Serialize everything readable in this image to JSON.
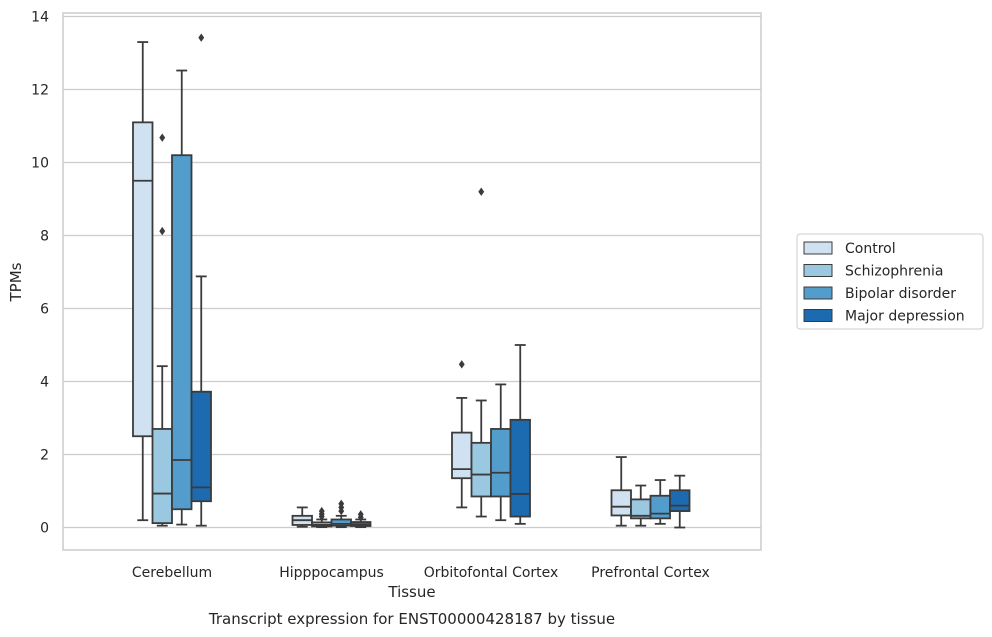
{
  "chart_data": {
    "type": "box",
    "title": "",
    "caption": "Transcript expression for ENST00000428187 by tissue",
    "xlabel": "Tissue",
    "ylabel": "TPMs",
    "ylim": [
      -0.65,
      14.15
    ],
    "yticks": [
      0,
      2,
      4,
      6,
      8,
      10,
      12,
      14
    ],
    "grid": true,
    "legend_position": "right",
    "categories": [
      "Cerebellum",
      "Hipppocampus",
      "Orbitofontal Cortex",
      "Prefrontal Cortex"
    ],
    "series": [
      {
        "name": "Control",
        "color": "#d0e1f2",
        "boxes": [
          {
            "whislo": 0.2,
            "q1": 2.5,
            "med": 9.5,
            "q3": 11.1,
            "whishi": 13.3,
            "fliers": []
          },
          {
            "whislo": 0.02,
            "q1": 0.07,
            "med": 0.2,
            "q3": 0.32,
            "whishi": 0.55,
            "fliers": []
          },
          {
            "whislo": 0.55,
            "q1": 1.35,
            "med": 1.6,
            "q3": 2.6,
            "whishi": 3.55,
            "fliers": [
              4.47
            ]
          },
          {
            "whislo": 0.05,
            "q1": 0.33,
            "med": 0.57,
            "q3": 1.02,
            "whishi": 1.93,
            "fliers": []
          }
        ]
      },
      {
        "name": "Schizophrenia",
        "color": "#9ac8e0",
        "boxes": [
          {
            "whislo": 0.05,
            "q1": 0.12,
            "med": 0.93,
            "q3": 2.7,
            "whishi": 4.42,
            "fliers": [
              8.12,
              10.68
            ]
          },
          {
            "whislo": 0.01,
            "q1": 0.03,
            "med": 0.07,
            "q3": 0.14,
            "whishi": 0.22,
            "fliers": [
              0.3,
              0.37,
              0.45
            ]
          },
          {
            "whislo": 0.3,
            "q1": 0.85,
            "med": 1.45,
            "q3": 2.32,
            "whishi": 3.48,
            "fliers": [
              9.2
            ]
          },
          {
            "whislo": 0.05,
            "q1": 0.25,
            "med": 0.32,
            "q3": 0.77,
            "whishi": 1.15,
            "fliers": []
          }
        ]
      },
      {
        "name": "Bipolar disorder",
        "color": "#529dcc",
        "boxes": [
          {
            "whislo": 0.08,
            "q1": 0.5,
            "med": 1.85,
            "q3": 10.2,
            "whishi": 12.52,
            "fliers": []
          },
          {
            "whislo": 0.01,
            "q1": 0.05,
            "med": 0.1,
            "q3": 0.22,
            "whishi": 0.32,
            "fliers": [
              0.45,
              0.55,
              0.65
            ]
          },
          {
            "whislo": 0.2,
            "q1": 0.85,
            "med": 1.5,
            "q3": 2.7,
            "whishi": 3.92,
            "fliers": []
          },
          {
            "whislo": 0.1,
            "q1": 0.25,
            "med": 0.38,
            "q3": 0.87,
            "whishi": 1.3,
            "fliers": []
          }
        ]
      },
      {
        "name": "Major depression",
        "color": "#1c6aaf",
        "boxes": [
          {
            "whislo": 0.05,
            "q1": 0.72,
            "med": 1.1,
            "q3": 3.72,
            "whishi": 6.88,
            "fliers": [
              13.42
            ]
          },
          {
            "whislo": 0.01,
            "q1": 0.04,
            "med": 0.08,
            "q3": 0.15,
            "whishi": 0.22,
            "fliers": [
              0.28,
              0.36
            ]
          },
          {
            "whislo": 0.1,
            "q1": 0.3,
            "med": 0.92,
            "q3": 2.95,
            "whishi": 5.0,
            "fliers": []
          },
          {
            "whislo": 0.0,
            "q1": 0.45,
            "med": 0.6,
            "q3": 1.02,
            "whishi": 1.42,
            "fliers": []
          }
        ]
      }
    ]
  }
}
